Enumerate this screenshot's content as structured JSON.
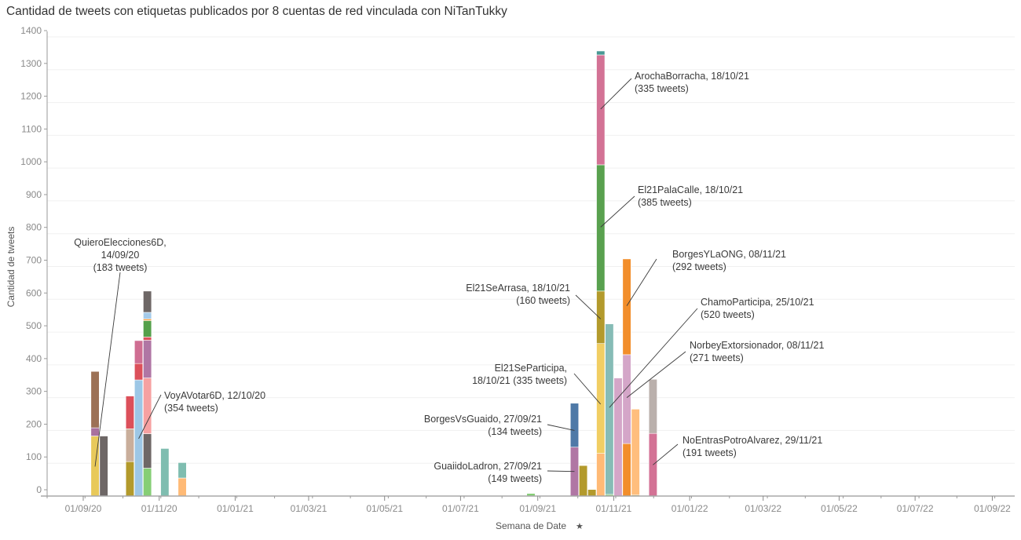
{
  "chart_data": {
    "type": "bar",
    "stacked": true,
    "title": "Cantidad de tweets con etiquetas publicados por 8 cuentas de red vinculada con NiTanTukky",
    "xlabel": "Semana de Date",
    "xlabel_icon": "pin-icon",
    "ylabel": "Cantidad de tweets",
    "ylim": [
      0,
      1400
    ],
    "yticks": [
      0,
      100,
      200,
      300,
      400,
      500,
      600,
      700,
      800,
      900,
      1000,
      1100,
      1200,
      1300,
      1400
    ],
    "xlim": [
      "2020-08-03",
      "2022-09-19"
    ],
    "xticks": [
      {
        "date": "2020-09-01",
        "label": "01/09/20"
      },
      {
        "date": "2020-11-01",
        "label": "01/11/20"
      },
      {
        "date": "2021-01-01",
        "label": "01/01/21"
      },
      {
        "date": "2021-03-01",
        "label": "01/03/21"
      },
      {
        "date": "2021-05-01",
        "label": "01/05/21"
      },
      {
        "date": "2021-07-01",
        "label": "01/07/21"
      },
      {
        "date": "2021-09-01",
        "label": "01/09/21"
      },
      {
        "date": "2021-11-01",
        "label": "01/11/21"
      },
      {
        "date": "2022-01-01",
        "label": "01/01/22"
      },
      {
        "date": "2022-03-01",
        "label": "01/03/22"
      },
      {
        "date": "2022-05-01",
        "label": "01/05/22"
      },
      {
        "date": "2022-07-01",
        "label": "01/07/22"
      },
      {
        "date": "2022-09-01",
        "label": "01/09/22"
      }
    ],
    "grid": true,
    "legend": "none",
    "weeks": [
      {
        "week": "2020-09-07",
        "segments": [
          {
            "value": 183,
            "color": "#E8C95A"
          },
          {
            "value": 25,
            "color": "#A8719E"
          },
          {
            "value": 172,
            "color": "#9C7156"
          }
        ]
      },
      {
        "week": "2020-09-14",
        "segments": [
          {
            "value": 183,
            "color": "#6E6766"
          }
        ]
      },
      {
        "week": "2020-10-05",
        "segments": [
          {
            "value": 105,
            "color": "#B39A2C"
          },
          {
            "value": 100,
            "color": "#C9AE9B"
          },
          {
            "value": 100,
            "color": "#DC505A"
          }
        ]
      },
      {
        "week": "2020-10-12",
        "segments": [
          {
            "value": 354,
            "color": "#9DC7E6"
          },
          {
            "value": 50,
            "color": "#DC505A"
          },
          {
            "value": 70,
            "color": "#CF6E92"
          }
        ]
      },
      {
        "week": "2020-10-19",
        "segments": [
          {
            "value": 85,
            "color": "#86CE76"
          },
          {
            "value": 105,
            "color": "#6E6766"
          },
          {
            "value": 170,
            "color": "#F6A1A1"
          },
          {
            "value": 115,
            "color": "#B076A4"
          },
          {
            "value": 10,
            "color": "#DC505A"
          },
          {
            "value": 50,
            "color": "#55A04A"
          },
          {
            "value": 5,
            "color": "#F49A3A"
          },
          {
            "value": 20,
            "color": "#A5CBEA"
          },
          {
            "value": 65,
            "color": "#6E6766"
          }
        ]
      },
      {
        "week": "2020-11-02",
        "segments": [
          {
            "value": 145,
            "color": "#7FBDB0"
          }
        ]
      },
      {
        "week": "2020-11-16",
        "segments": [
          {
            "value": 55,
            "color": "#FFBA76"
          },
          {
            "value": 47,
            "color": "#7FBDB0"
          }
        ]
      },
      {
        "week": "2021-08-23",
        "segments": [
          {
            "value": 8,
            "color": "#86CE76"
          }
        ]
      },
      {
        "week": "2021-09-27",
        "segments": [
          {
            "value": 149,
            "color": "#B076A4"
          },
          {
            "value": 134,
            "color": "#4E79A7"
          }
        ]
      },
      {
        "week": "2021-10-04",
        "segments": [
          {
            "value": 93,
            "color": "#B39A2C"
          }
        ]
      },
      {
        "week": "2021-10-11",
        "segments": [
          {
            "value": 20,
            "color": "#B39A2C"
          }
        ]
      },
      {
        "week": "2021-10-18",
        "segments": [
          {
            "value": 130,
            "color": "#FFBA76"
          },
          {
            "value": 335,
            "color": "#F1CE63"
          },
          {
            "value": 160,
            "color": "#B39A2C"
          },
          {
            "value": 385,
            "color": "#59A14F"
          },
          {
            "value": 335,
            "color": "#D37295"
          },
          {
            "value": 12,
            "color": "#499894"
          }
        ]
      },
      {
        "week": "2021-10-25",
        "segments": [
          {
            "value": 5,
            "color": "#86CE76"
          },
          {
            "value": 520,
            "color": "#86BCB6"
          }
        ]
      },
      {
        "week": "2021-11-01",
        "segments": [
          {
            "value": 360,
            "color": "#D4A6C8"
          }
        ]
      },
      {
        "week": "2021-11-08",
        "segments": [
          {
            "value": 160,
            "color": "#F28E2B"
          },
          {
            "value": 271,
            "color": "#D4A6C8"
          },
          {
            "value": 292,
            "color": "#F28E2B"
          }
        ]
      },
      {
        "week": "2021-11-15",
        "segments": [
          {
            "value": 3,
            "color": "#B39A2C"
          },
          {
            "value": 262,
            "color": "#FFBE7D"
          }
        ]
      },
      {
        "week": "2021-11-29",
        "segments": [
          {
            "value": 191,
            "color": "#D37295"
          },
          {
            "value": 165,
            "color": "#BAB0AC"
          }
        ]
      }
    ],
    "annotations": [
      {
        "lines": [
          "QuieroElecciones6D,",
          "14/09/20",
          "(183 tweets)"
        ],
        "align": "middle",
        "target_week": "2020-09-07",
        "target_value": 90
      },
      {
        "lines": [
          "VoyAVotar6D, 12/10/20",
          "(354 tweets)"
        ],
        "align": "start",
        "target_week": "2020-10-12",
        "target_value": 175
      },
      {
        "lines": [
          "ArochaBorracha, 18/10/21",
          "(335 tweets)"
        ],
        "align": "start",
        "target_week": "2021-10-18",
        "target_value": 1180
      },
      {
        "lines": [
          "El21PalaCalle, 18/10/21",
          "(385 tweets)"
        ],
        "align": "start",
        "target_week": "2021-10-18",
        "target_value": 820
      },
      {
        "lines": [
          "BorgesYLaONG, 08/11/21",
          "(292 tweets)"
        ],
        "align": "start",
        "target_week": "2021-11-08",
        "target_value": 580
      },
      {
        "lines": [
          "El21SeArrasa, 18/10/21",
          "(160 tweets)"
        ],
        "align": "end",
        "target_week": "2021-10-18",
        "target_value": 540
      },
      {
        "lines": [
          "ChamoParticipa, 25/10/21",
          "(520 tweets)"
        ],
        "align": "start",
        "target_week": "2021-10-25",
        "target_value": 270
      },
      {
        "lines": [
          "NorbeyExtorsionador, 08/11/21",
          "(271 tweets)"
        ],
        "align": "start",
        "target_week": "2021-11-08",
        "target_value": 300
      },
      {
        "lines": [
          "El21SeParticipa,",
          "18/10/21 (335 tweets)"
        ],
        "align": "end",
        "target_week": "2021-10-18",
        "target_value": 280
      },
      {
        "lines": [
          "BorgesVsGuaido, 27/09/21",
          "(134 tweets)"
        ],
        "align": "end",
        "target_week": "2021-09-27",
        "target_value": 200
      },
      {
        "lines": [
          "GuaiidoLadron, 27/09/21",
          "(149 tweets)"
        ],
        "align": "end",
        "target_week": "2021-09-27",
        "target_value": 75
      },
      {
        "lines": [
          "NoEntrasPotroAlvarez, 29/11/21",
          "(191 tweets)"
        ],
        "align": "start",
        "target_week": "2021-11-29",
        "target_value": 95
      }
    ]
  }
}
